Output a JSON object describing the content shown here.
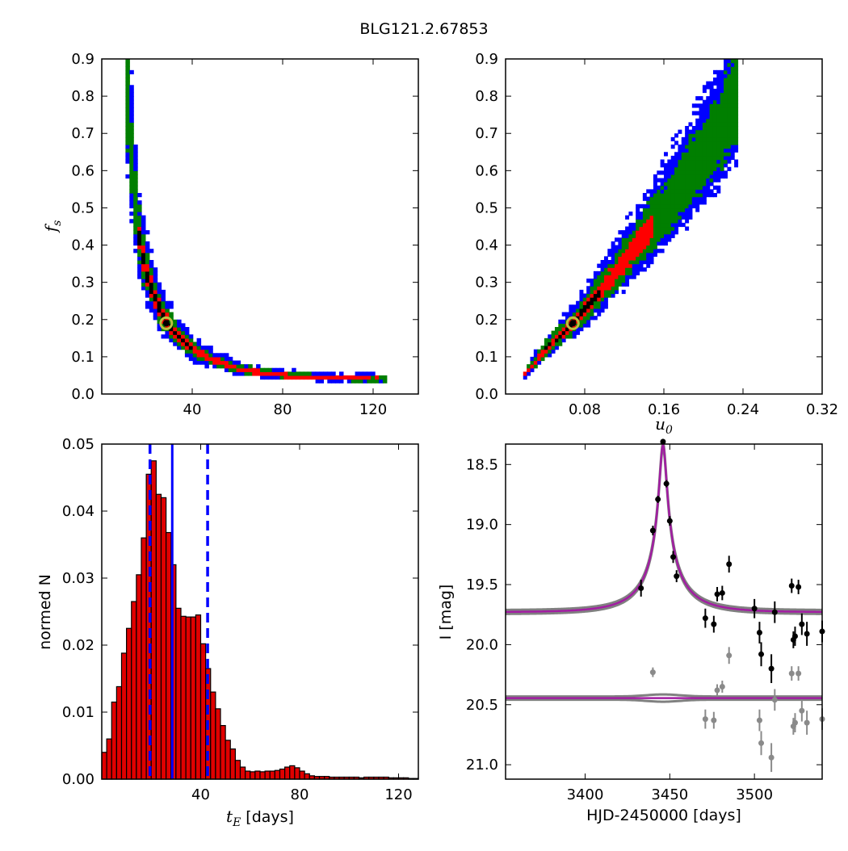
{
  "figure": {
    "title": "BLG121.2.67853"
  },
  "colors": {
    "blue": "#0000ff",
    "green": "#007f00",
    "red": "#ff0000",
    "black": "#000000",
    "marker_ring": "#bfbf3f",
    "bar_fill": "#e00000",
    "model_line": "#a21da2",
    "band_grey": "#808080",
    "data_grey": "#8a8a8a"
  },
  "chart_data": [
    {
      "id": "tE_fs",
      "type": "heatmap",
      "xlim": [
        0,
        140
      ],
      "ylim": [
        0.0,
        0.9
      ],
      "xticks": [
        40,
        80,
        120
      ],
      "yticks": [
        "0.0",
        "0.1",
        "0.2",
        "0.3",
        "0.4",
        "0.5",
        "0.6",
        "0.7",
        "0.8",
        "0.9"
      ],
      "ylabel": "f_s",
      "ylabel_main": "f",
      "ylabel_sub": "s",
      "best_fit": {
        "x": 28.5,
        "y": 0.19
      },
      "ridge": [
        [
          11,
          0.83
        ],
        [
          14,
          0.55
        ],
        [
          17,
          0.4
        ],
        [
          20,
          0.32
        ],
        [
          24,
          0.25
        ],
        [
          28,
          0.2
        ],
        [
          33,
          0.16
        ],
        [
          40,
          0.12
        ],
        [
          50,
          0.09
        ],
        [
          62,
          0.065
        ],
        [
          80,
          0.05
        ],
        [
          100,
          0.045
        ],
        [
          126,
          0.04
        ]
      ]
    },
    {
      "id": "u0_fs",
      "type": "heatmap",
      "xlim": [
        0.0,
        0.32
      ],
      "ylim": [
        0.0,
        0.9
      ],
      "xticks": [
        "0.08",
        "0.16",
        "0.24",
        "0.32"
      ],
      "yticks": [
        "0.0",
        "0.1",
        "0.2",
        "0.3",
        "0.4",
        "0.5",
        "0.6",
        "0.7",
        "0.8",
        "0.9"
      ],
      "xlabel": "u_0",
      "xlabel_main": "u",
      "xlabel_sub": "0",
      "best_fit": {
        "x": 0.068,
        "y": 0.19
      },
      "ridge": [
        [
          0.017,
          0.045
        ],
        [
          0.04,
          0.12
        ],
        [
          0.068,
          0.19
        ],
        [
          0.1,
          0.29
        ],
        [
          0.13,
          0.39
        ],
        [
          0.16,
          0.49
        ],
        [
          0.19,
          0.6
        ],
        [
          0.215,
          0.7
        ],
        [
          0.235,
          0.8
        ]
      ]
    },
    {
      "id": "tE_hist",
      "type": "bar",
      "xlim": [
        0,
        128
      ],
      "ylim": [
        0.0,
        0.05
      ],
      "xticks": [
        40,
        80,
        120
      ],
      "yticks": [
        "0.00",
        "0.01",
        "0.02",
        "0.03",
        "0.04",
        "0.05"
      ],
      "xlabel_var": "t",
      "xlabel_sub": "E",
      "xlabel_unit": "[days]",
      "ylabel": "normed N",
      "bin_start": 0,
      "bin_width": 2,
      "values": [
        0.004,
        0.006,
        0.0115,
        0.0138,
        0.0188,
        0.0225,
        0.0265,
        0.0305,
        0.036,
        0.0455,
        0.0475,
        0.0425,
        0.042,
        0.0368,
        0.032,
        0.0255,
        0.0243,
        0.0242,
        0.0242,
        0.0245,
        0.0202,
        0.0165,
        0.013,
        0.0105,
        0.008,
        0.0058,
        0.0045,
        0.0028,
        0.0018,
        0.0012,
        0.0011,
        0.0012,
        0.0011,
        0.0012,
        0.0012,
        0.0013,
        0.0015,
        0.0018,
        0.002,
        0.0017,
        0.0012,
        0.0008,
        0.0005,
        0.0004,
        0.0004,
        0.0004,
        0.0003,
        0.0003,
        0.0003,
        0.0003,
        0.0003,
        0.0003,
        0.0002,
        0.0003,
        0.0003,
        0.0003,
        0.0003,
        0.0003,
        0.0002,
        0.0002,
        0.0002,
        0.0002,
        0.0001,
        0.0001
      ],
      "median": 28.5,
      "interval": [
        19.5,
        42.8
      ]
    },
    {
      "id": "light_curve",
      "type": "scatter",
      "xlim": [
        3353,
        3540
      ],
      "ylim": [
        21.12,
        18.33
      ],
      "xticks": [
        3400,
        3450,
        3500
      ],
      "yticks": [
        "18.5",
        "19.0",
        "19.5",
        "20.0",
        "20.5",
        "21.0"
      ],
      "xlabel": "HJD-2450000 [days]",
      "ylabel": "I [mag]",
      "model": {
        "t0": 3446.0,
        "tE": 28.5,
        "u0": 0.068,
        "fs": 0.19,
        "base_mag": 19.73
      },
      "residual_baseline": 20.445,
      "series": [
        {
          "name": "",
          "points": [
            [
              3433,
              19.53,
              0.07
            ],
            [
              3440,
              19.05,
              0.04
            ],
            [
              3443,
              18.79,
              0.03
            ],
            [
              3446,
              18.31,
              0.02
            ],
            [
              3448,
              18.66,
              0.03
            ],
            [
              3450,
              18.97,
              0.04
            ],
            [
              3452,
              19.27,
              0.05
            ],
            [
              3454,
              19.43,
              0.05
            ],
            [
              3471,
              19.78,
              0.08
            ],
            [
              3476,
              19.83,
              0.07
            ],
            [
              3478,
              19.58,
              0.06
            ],
            [
              3481,
              19.57,
              0.06
            ],
            [
              3485,
              19.33,
              0.07
            ],
            [
              3500,
              19.7,
              0.08
            ],
            [
              3503,
              19.9,
              0.09
            ],
            [
              3504,
              20.08,
              0.1
            ],
            [
              3510,
              20.2,
              0.12
            ],
            [
              3512,
              19.73,
              0.09
            ],
            [
              3522,
              19.51,
              0.06
            ],
            [
              3523,
              19.96,
              0.07
            ],
            [
              3524,
              19.93,
              0.08
            ],
            [
              3526,
              19.52,
              0.06
            ],
            [
              3528,
              19.83,
              0.09
            ],
            [
              3531,
              19.91,
              0.1
            ],
            [
              3540,
              19.89,
              0.09
            ]
          ]
        },
        {
          "name": "",
          "points": [
            [
              3440,
              20.23,
              0.04
            ],
            [
              3471,
              20.62,
              0.08
            ],
            [
              3476,
              20.63,
              0.07
            ],
            [
              3478,
              20.38,
              0.05
            ],
            [
              3481,
              20.35,
              0.05
            ],
            [
              3485,
              20.09,
              0.07
            ],
            [
              3503,
              20.63,
              0.09
            ],
            [
              3504,
              20.82,
              0.1
            ],
            [
              3510,
              20.94,
              0.12
            ],
            [
              3512,
              20.46,
              0.09
            ],
            [
              3522,
              20.24,
              0.06
            ],
            [
              3523,
              20.68,
              0.07
            ],
            [
              3524,
              20.65,
              0.08
            ],
            [
              3526,
              20.24,
              0.06
            ],
            [
              3528,
              20.55,
              0.09
            ],
            [
              3531,
              20.65,
              0.1
            ],
            [
              3540,
              20.62,
              0.09
            ]
          ]
        }
      ]
    }
  ]
}
